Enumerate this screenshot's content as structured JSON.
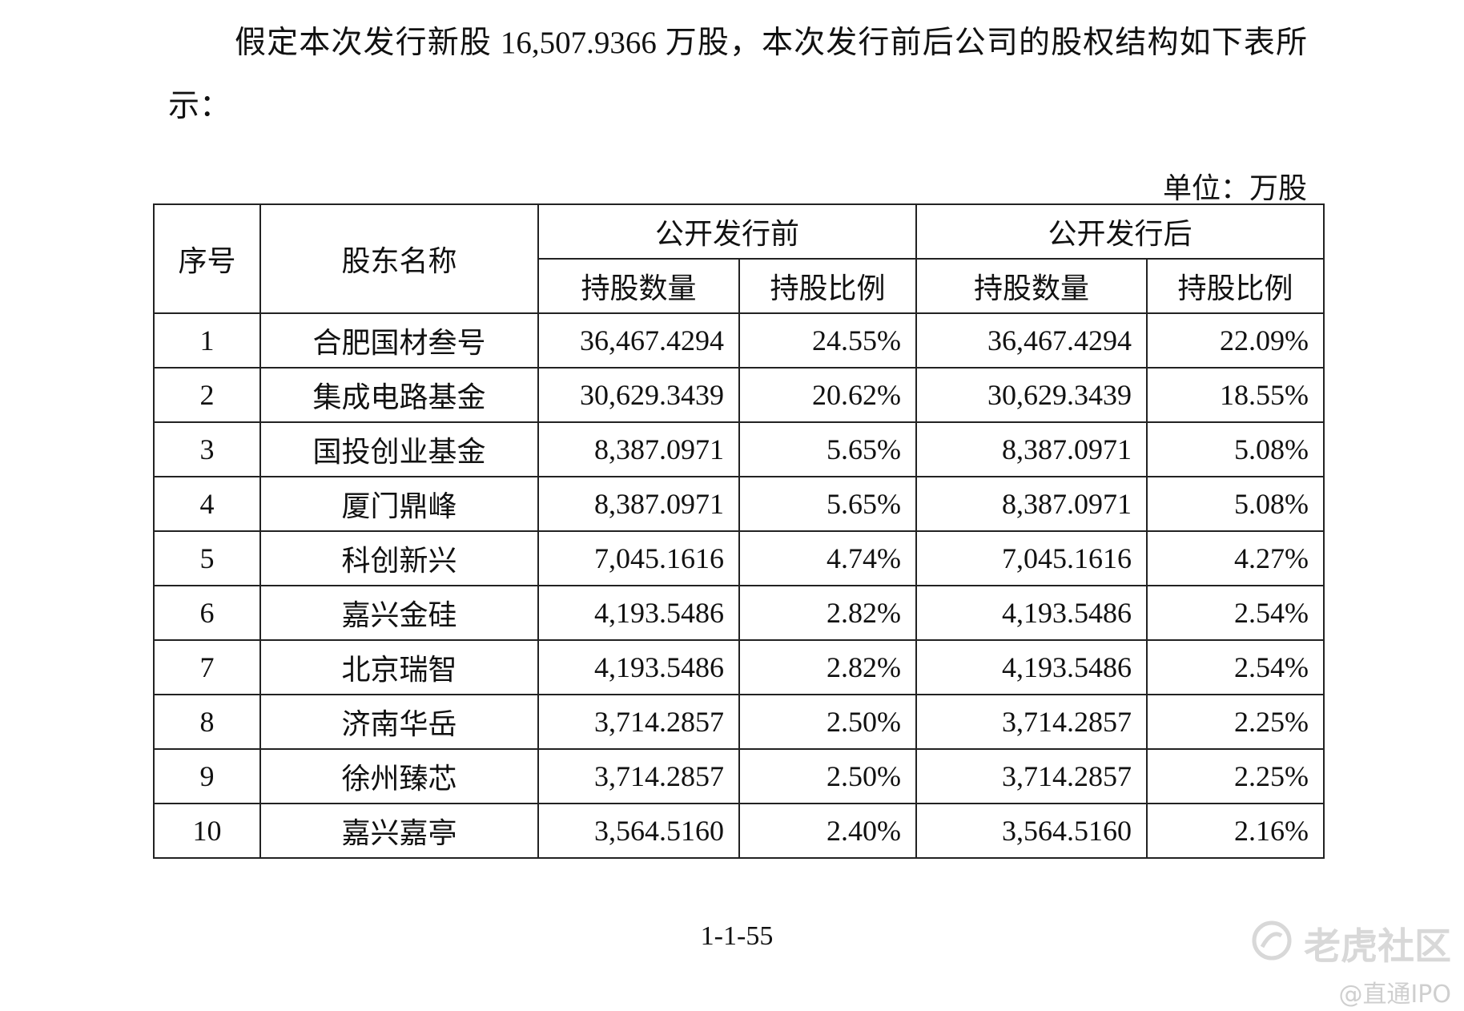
{
  "paragraph": "假定本次发行新股 16,507.9366 万股，本次发行前后公司的股权结构如下表所示：",
  "unit": "单位：万股",
  "table": {
    "header": [
      [
        "序号",
        "股东名称",
        "公开发行前",
        "公开发行后"
      ],
      [
        "持股数量",
        "持股比例",
        "持股数量",
        "持股比例"
      ]
    ],
    "rows": [
      [
        "1",
        "合肥国材叁号",
        "36,467.4294",
        "24.55%",
        "36,467.4294",
        "22.09%"
      ],
      [
        "2",
        "集成电路基金",
        "30,629.3439",
        "20.62%",
        "30,629.3439",
        "18.55%"
      ],
      [
        "3",
        "国投创业基金",
        "8,387.0971",
        "5.65%",
        "8,387.0971",
        "5.08%"
      ],
      [
        "4",
        "厦门鼎峰",
        "8,387.0971",
        "5.65%",
        "8,387.0971",
        "5.08%"
      ],
      [
        "5",
        "科创新兴",
        "7,045.1616",
        "4.74%",
        "7,045.1616",
        "4.27%"
      ],
      [
        "6",
        "嘉兴金硅",
        "4,193.5486",
        "2.82%",
        "4,193.5486",
        "2.54%"
      ],
      [
        "7",
        "北京瑞智",
        "4,193.5486",
        "2.82%",
        "4,193.5486",
        "2.54%"
      ],
      [
        "8",
        "济南华岳",
        "3,714.2857",
        "2.50%",
        "3,714.2857",
        "2.25%"
      ],
      [
        "9",
        "徐州臻芯",
        "3,714.2857",
        "2.50%",
        "3,714.2857",
        "2.25%"
      ],
      [
        "10",
        "嘉兴嘉亭",
        "3,564.5160",
        "2.40%",
        "3,564.5160",
        "2.16%"
      ]
    ]
  },
  "page_number": "1-1-55",
  "watermark": {
    "brand": "老虎社区",
    "author": "@直通IPO"
  }
}
